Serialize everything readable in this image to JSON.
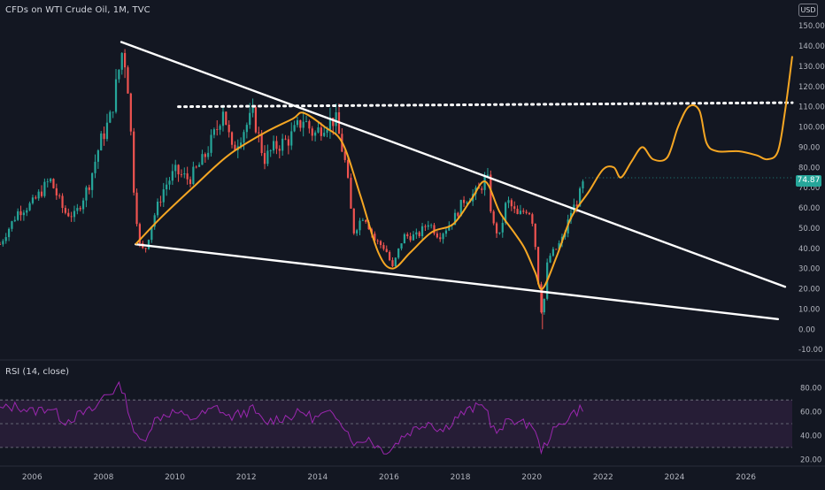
{
  "header": {
    "title": "CFDs on WTI Crude Oil, 1M, TVC"
  },
  "currency_badge": "USD",
  "last_price_label": "74.87",
  "colors": {
    "background": "#131722",
    "up_candle": "#26a69a",
    "down_candle": "#ef5350",
    "trendline": "#ffffff",
    "projection": "#f5a623",
    "rsi_line": "#9c27b0",
    "rsi_band": "#2a1f3a",
    "axis_text": "#b2b5be"
  },
  "chart_data": [
    {
      "type": "candlestick",
      "title": "CFDs on WTI Crude Oil, 1M, TVC",
      "xlabel": "",
      "ylabel": "",
      "x_ticks": [
        "2006",
        "2008",
        "2010",
        "2012",
        "2014",
        "2016",
        "2018",
        "2020",
        "2022",
        "2024",
        "2026"
      ],
      "y_ticks": [
        "150.00",
        "140.00",
        "130.00",
        "120.00",
        "110.00",
        "100.00",
        "90.00",
        "80.00",
        "70.00",
        "60.00",
        "50.00",
        "40.00",
        "30.00",
        "20.00",
        "10.00",
        "0.00",
        "-10.00"
      ],
      "x_range": [
        2005.1,
        2027.3
      ],
      "ylim": [
        -13,
        154
      ],
      "last_price": 74.87,
      "price_path": [
        [
          2005.1,
          42
        ],
        [
          2005.6,
          58
        ],
        [
          2006.0,
          62
        ],
        [
          2006.5,
          74
        ],
        [
          2006.9,
          58
        ],
        [
          2007.2,
          56
        ],
        [
          2007.6,
          72
        ],
        [
          2007.9,
          92
        ],
        [
          2008.2,
          105
        ],
        [
          2008.45,
          130
        ],
        [
          2008.55,
          140
        ],
        [
          2008.7,
          118
        ],
        [
          2008.85,
          70
        ],
        [
          2009.0,
          42
        ],
        [
          2009.15,
          38
        ],
        [
          2009.4,
          55
        ],
        [
          2009.7,
          70
        ],
        [
          2010.0,
          78
        ],
        [
          2010.4,
          74
        ],
        [
          2010.8,
          84
        ],
        [
          2011.2,
          100
        ],
        [
          2011.35,
          110
        ],
        [
          2011.6,
          88
        ],
        [
          2011.9,
          98
        ],
        [
          2012.2,
          106
        ],
        [
          2012.5,
          84
        ],
        [
          2012.8,
          90
        ],
        [
          2013.2,
          94
        ],
        [
          2013.6,
          104
        ],
        [
          2013.9,
          96
        ],
        [
          2014.2,
          102
        ],
        [
          2014.5,
          104
        ],
        [
          2014.8,
          80
        ],
        [
          2015.0,
          48
        ],
        [
          2015.3,
          57
        ],
        [
          2015.6,
          44
        ],
        [
          2015.9,
          40
        ],
        [
          2016.1,
          30
        ],
        [
          2016.4,
          46
        ],
        [
          2016.8,
          46
        ],
        [
          2017.1,
          53
        ],
        [
          2017.4,
          46
        ],
        [
          2017.8,
          54
        ],
        [
          2018.1,
          64
        ],
        [
          2018.5,
          68
        ],
        [
          2018.75,
          76
        ],
        [
          2018.9,
          52
        ],
        [
          2019.1,
          46
        ],
        [
          2019.3,
          64
        ],
        [
          2019.6,
          56
        ],
        [
          2019.9,
          60
        ],
        [
          2020.05,
          52
        ],
        [
          2020.2,
          20
        ],
        [
          2020.3,
          5
        ],
        [
          2020.45,
          35
        ],
        [
          2020.7,
          40
        ],
        [
          2020.9,
          46
        ],
        [
          2021.1,
          58
        ],
        [
          2021.3,
          64
        ],
        [
          2021.5,
          74.87
        ]
      ],
      "trendlines": [
        {
          "style": "solid",
          "from": [
            2008.5,
            142
          ],
          "to": [
            2027.1,
            21
          ]
        },
        {
          "style": "solid",
          "from": [
            2008.9,
            42
          ],
          "to": [
            2026.9,
            5
          ]
        },
        {
          "style": "dotted",
          "from": [
            2010.1,
            110
          ],
          "to": [
            2027.3,
            112
          ]
        }
      ],
      "projection_curve": [
        [
          2008.9,
          42
        ],
        [
          2009.6,
          55
        ],
        [
          2010.5,
          70
        ],
        [
          2011.5,
          86
        ],
        [
          2012.5,
          97
        ],
        [
          2013.3,
          104
        ],
        [
          2013.6,
          107
        ],
        [
          2014.2,
          100
        ],
        [
          2014.7,
          92
        ],
        [
          2015.2,
          66
        ],
        [
          2015.7,
          38
        ],
        [
          2016.1,
          30
        ],
        [
          2016.6,
          38
        ],
        [
          2017.2,
          48
        ],
        [
          2017.8,
          52
        ],
        [
          2018.3,
          64
        ],
        [
          2018.7,
          73
        ],
        [
          2019.1,
          58
        ],
        [
          2019.5,
          48
        ],
        [
          2019.8,
          40
        ],
        [
          2020.1,
          28
        ],
        [
          2020.3,
          20
        ],
        [
          2020.7,
          36
        ],
        [
          2021.1,
          55
        ],
        [
          2021.6,
          68
        ],
        [
          2022.0,
          79
        ],
        [
          2022.3,
          80
        ],
        [
          2022.5,
          75
        ],
        [
          2022.8,
          83
        ],
        [
          2023.1,
          90
        ],
        [
          2023.4,
          84
        ],
        [
          2023.8,
          85
        ],
        [
          2024.1,
          100
        ],
        [
          2024.4,
          110
        ],
        [
          2024.7,
          108
        ],
        [
          2024.9,
          92
        ],
        [
          2025.2,
          88
        ],
        [
          2025.8,
          88
        ],
        [
          2026.3,
          86
        ],
        [
          2026.6,
          84
        ],
        [
          2026.9,
          88
        ],
        [
          2027.1,
          108
        ],
        [
          2027.3,
          135
        ]
      ]
    },
    {
      "type": "line",
      "title": "RSI (14, close)",
      "xlabel": "",
      "ylabel": "",
      "y_ticks": [
        "80.00",
        "60.00",
        "40.00",
        "20.00"
      ],
      "ylim": [
        18,
        88
      ],
      "overbought": 70,
      "oversold": 30,
      "midline": 50,
      "values": [
        [
          2005.1,
          62
        ],
        [
          2005.6,
          65
        ],
        [
          2006.0,
          60
        ],
        [
          2006.5,
          64
        ],
        [
          2006.9,
          52
        ],
        [
          2007.3,
          57
        ],
        [
          2007.8,
          63
        ],
        [
          2008.0,
          74
        ],
        [
          2008.3,
          78
        ],
        [
          2008.5,
          82
        ],
        [
          2008.7,
          62
        ],
        [
          2008.9,
          38
        ],
        [
          2009.1,
          35
        ],
        [
          2009.4,
          52
        ],
        [
          2009.7,
          58
        ],
        [
          2010.0,
          60
        ],
        [
          2010.4,
          54
        ],
        [
          2010.8,
          58
        ],
        [
          2011.2,
          64
        ],
        [
          2011.5,
          55
        ],
        [
          2011.9,
          59
        ],
        [
          2012.2,
          62
        ],
        [
          2012.5,
          50
        ],
        [
          2012.8,
          54
        ],
        [
          2013.2,
          56
        ],
        [
          2013.6,
          60
        ],
        [
          2013.9,
          54
        ],
        [
          2014.2,
          58
        ],
        [
          2014.6,
          56
        ],
        [
          2014.9,
          40
        ],
        [
          2015.1,
          32
        ],
        [
          2015.4,
          39
        ],
        [
          2015.7,
          30
        ],
        [
          2016.0,
          27
        ],
        [
          2016.4,
          40
        ],
        [
          2016.8,
          47
        ],
        [
          2017.1,
          52
        ],
        [
          2017.5,
          44
        ],
        [
          2017.9,
          56
        ],
        [
          2018.3,
          62
        ],
        [
          2018.7,
          66
        ],
        [
          2018.9,
          46
        ],
        [
          2019.1,
          42
        ],
        [
          2019.4,
          56
        ],
        [
          2019.7,
          49
        ],
        [
          2020.0,
          51
        ],
        [
          2020.2,
          32
        ],
        [
          2020.3,
          27
        ],
        [
          2020.5,
          40
        ],
        [
          2020.8,
          49
        ],
        [
          2021.1,
          58
        ],
        [
          2021.3,
          61
        ],
        [
          2021.5,
          66
        ]
      ]
    }
  ]
}
